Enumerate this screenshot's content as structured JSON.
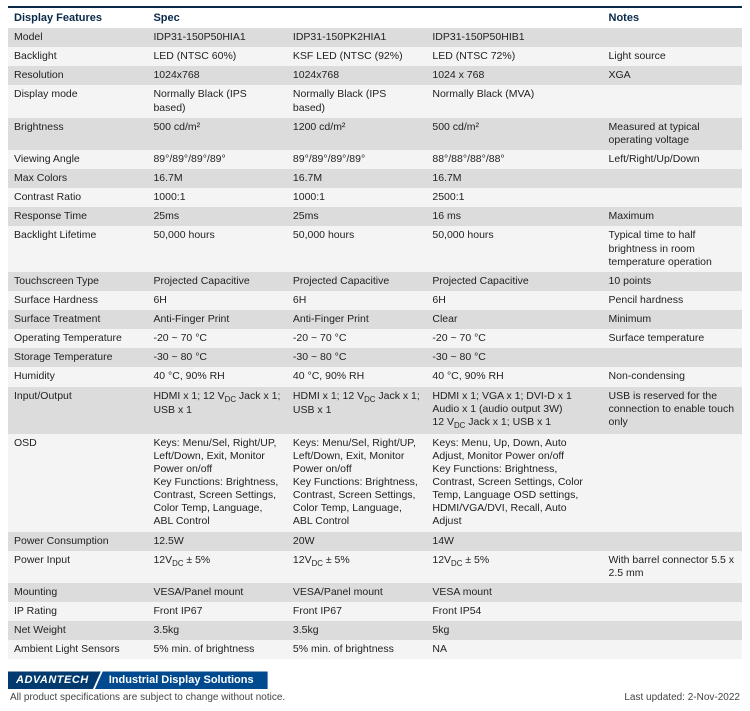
{
  "table": {
    "headers": [
      "Display Features",
      "Spec",
      "",
      "",
      "Notes"
    ],
    "col_widths": [
      "19%",
      "19%",
      "19%",
      "24%",
      "19%"
    ],
    "rows": [
      [
        "Model",
        "IDP31-150P50HIA1",
        "IDP31-150PK2HIA1",
        "IDP31-150P50HIB1",
        ""
      ],
      [
        "Backlight",
        "LED (NTSC 60%)",
        "KSF LED (NTSC (92%)",
        "LED (NTSC 72%)",
        "Light source"
      ],
      [
        "Resolution",
        "1024x768",
        "1024x768",
        "1024 x 768",
        "XGA"
      ],
      [
        "Display mode",
        "Normally Black (IPS based)",
        "Normally Black (IPS based)",
        "Normally Black (MVA)",
        ""
      ],
      [
        "Brightness",
        "500 cd/m²",
        "1200 cd/m²",
        "500 cd/m²",
        "Measured at typical operating voltage"
      ],
      [
        "Viewing Angle",
        "89°/89°/89°/89°",
        "89°/89°/89°/89°",
        "88°/88°/88°/88°",
        "Left/Right/Up/Down"
      ],
      [
        "Max Colors",
        "16.7M",
        "16.7M",
        "16.7M",
        ""
      ],
      [
        "Contrast Ratio",
        "1000:1",
        "1000:1",
        "2500:1",
        ""
      ],
      [
        "Response Time",
        "25ms",
        "25ms",
        "16 ms",
        "Maximum"
      ],
      [
        "Backlight Lifetime",
        "50,000 hours",
        "50,000 hours",
        "50,000 hours",
        "Typical time to half brightness in room temperature operation"
      ],
      [
        "Touchscreen Type",
        "Projected Capacitive",
        "Projected Capacitive",
        "Projected Capacitive",
        "10 points"
      ],
      [
        "Surface Hardness",
        "6H",
        "6H",
        "6H",
        "Pencil hardness"
      ],
      [
        "Surface Treatment",
        "Anti-Finger Print",
        "Anti-Finger Print",
        "Clear",
        "Minimum"
      ],
      [
        "Operating Temperature",
        "-20 ~ 70 °C",
        "-20 ~ 70 °C",
        "-20 ~ 70 °C",
        "Surface temperature"
      ],
      [
        "Storage Temperature",
        "-30 ~ 80 °C",
        "-30 ~ 80 °C",
        "-30 ~ 80 °C",
        ""
      ],
      [
        "Humidity",
        "40 °C, 90% RH",
        "40 °C, 90% RH",
        "40 °C, 90% RH",
        "Non-condensing"
      ],
      [
        "Input/Output",
        "HDMI x 1; 12 V{DC} Jack x 1; USB x 1",
        "HDMI x 1; 12 V{DC} Jack x 1; USB x 1",
        "HDMI x 1; VGA x 1; DVI-D x 1\nAudio x 1 (audio output 3W)\n12 V{DC} Jack x 1; USB x 1",
        "USB is reserved for the connection to enable touch only"
      ],
      [
        "OSD",
        "Keys: Menu/Sel, Right/UP, Left/Down, Exit, Monitor Power on/off\nKey Functions: Brightness, Contrast, Screen Settings, Color Temp, Language, ABL Control",
        "Keys: Menu/Sel, Right/UP, Left/Down, Exit, Monitor Power on/off\nKey Functions: Brightness, Contrast, Screen Settings, Color Temp, Language, ABL Control",
        "Keys: Menu, Up, Down, Auto Adjust, Monitor Power on/off\nKey Functions: Brightness, Contrast, Screen Settings, Color Temp, Language OSD settings, HDMI/VGA/DVI, Recall, Auto Adjust",
        ""
      ],
      [
        "Power Consumption",
        "12.5W",
        "20W",
        "14W",
        ""
      ],
      [
        "Power Input",
        "12V{DC} ± 5%",
        "12V{DC} ± 5%",
        "12V{DC} ± 5%",
        "With barrel connector 5.5 x 2.5 mm"
      ],
      [
        "Mounting",
        "VESA/Panel mount",
        "VESA/Panel mount",
        "VESA mount",
        ""
      ],
      [
        "IP Rating",
        "Front IP67",
        "Front IP67",
        "Front  IP54",
        ""
      ],
      [
        "Net Weight",
        "3.5kg",
        "3.5kg",
        "5kg",
        ""
      ],
      [
        "Ambient Light Sensors",
        "5% min. of brightness",
        "5% min. of brightness",
        "NA",
        ""
      ]
    ]
  },
  "brand": {
    "logo": "ADVANTECH",
    "title": "Industrial Display Solutions"
  },
  "footer": {
    "left": "All product specifications are subject to change without notice.",
    "right": "Last updated: 2-Nov-2022"
  },
  "colors": {
    "header_text": "#0a2a4a",
    "row_odd": "#dcdcdc",
    "row_even": "#f4f4f4",
    "brand_dark": "#003a6f",
    "brand_blue": "#004a90"
  }
}
